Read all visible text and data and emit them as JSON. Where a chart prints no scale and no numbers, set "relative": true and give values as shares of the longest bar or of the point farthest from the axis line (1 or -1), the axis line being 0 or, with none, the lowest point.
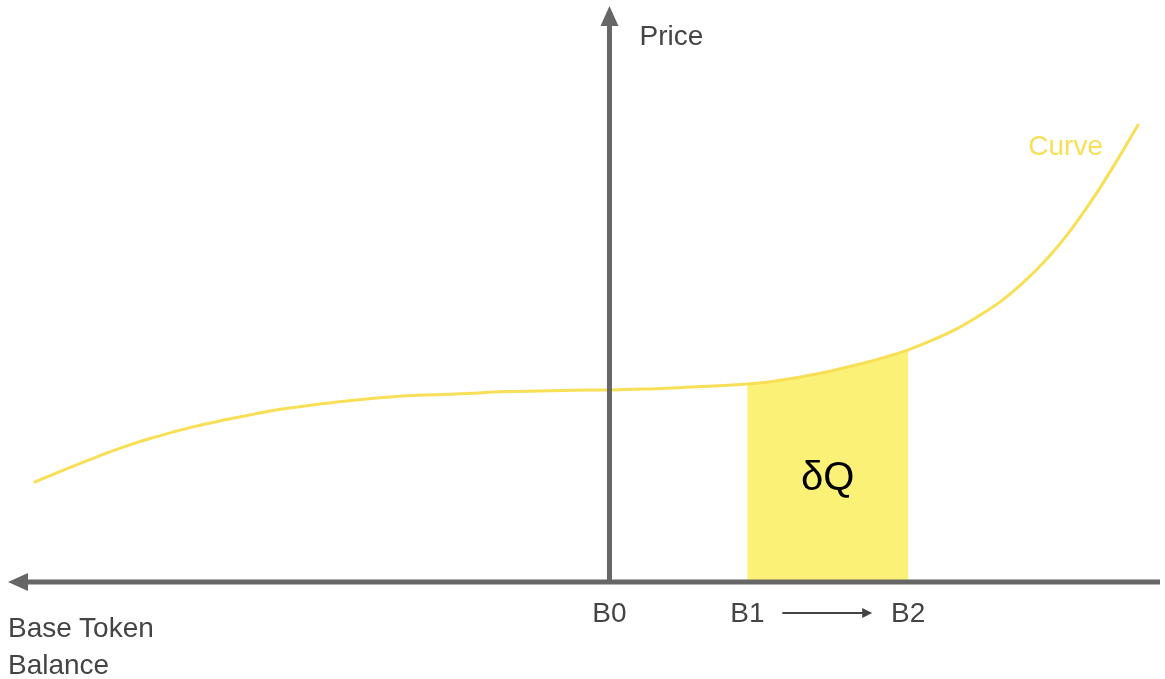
{
  "chart_data": {
    "type": "line",
    "relative": true,
    "ylabel": "Price",
    "xlabel": "Base Token Balance",
    "categories": [
      null,
      null,
      null,
      null,
      null,
      null,
      null,
      null,
      null,
      null,
      null,
      null,
      null,
      null,
      null,
      null,
      null,
      null,
      null,
      null,
      null,
      null,
      null,
      null,
      null,
      "B0",
      null,
      null,
      null,
      null,
      null,
      "B1",
      null,
      null,
      null,
      null,
      null,
      null,
      "B2",
      null,
      null,
      null,
      null,
      null,
      null,
      null,
      null,
      null,
      null
    ],
    "series": [
      {
        "name": "Curve",
        "color": "#f8df55",
        "values": [
          0.219,
          0.24,
          0.26,
          0.28,
          0.298,
          0.314,
          0.328,
          0.341,
          0.352,
          0.362,
          0.372,
          0.38,
          0.387,
          0.393,
          0.398,
          0.403,
          0.407,
          0.409,
          0.411,
          0.413,
          0.416,
          0.417,
          0.418,
          0.419,
          0.42,
          0.42,
          0.422,
          0.423,
          0.425,
          0.428,
          0.43,
          0.433,
          0.438,
          0.446,
          0.455,
          0.466,
          0.478,
          0.492,
          0.508,
          0.528,
          0.551,
          0.58,
          0.613,
          0.655,
          0.705,
          0.765,
          0.836,
          0.915,
          1
        ]
      }
    ],
    "bands": [
      {
        "axis": "x",
        "from": "B1",
        "to": "B2",
        "label": "δQ",
        "color": "#fbf177"
      }
    ],
    "ref_lines": [
      {
        "axis": "x",
        "value": "B0",
        "color": "#666666"
      }
    ],
    "legend": false,
    "marker": "none",
    "line_style": "solid"
  }
}
